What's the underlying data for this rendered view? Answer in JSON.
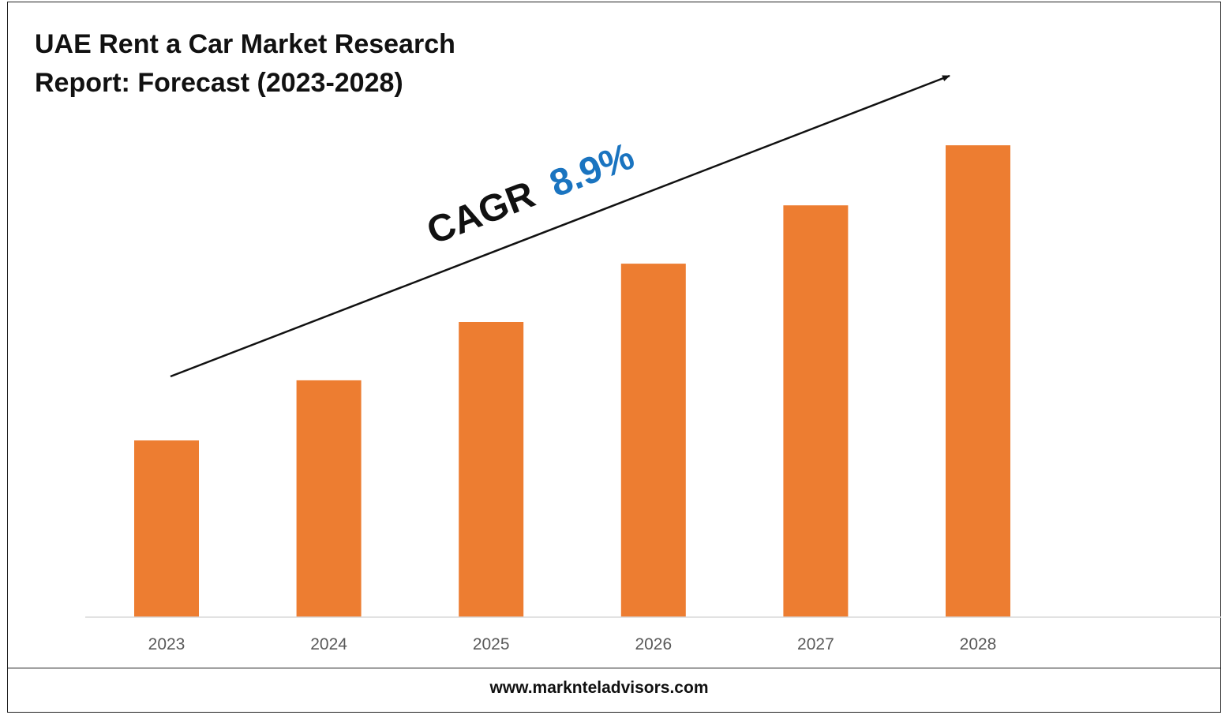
{
  "title": {
    "line1": "UAE Rent a Car Market Research",
    "line2": "Report: Forecast (2023-2028)"
  },
  "footer": {
    "url": "www.marknteladvisors.com"
  },
  "annotation": {
    "prefix": "CAGR",
    "value": "8.9%",
    "prefix_color": "#111111",
    "value_color": "#1a74c0"
  },
  "colors": {
    "bar": "#ed7d31",
    "baseline": "#d9d9d9",
    "tick_label": "#595959",
    "arrow": "#111111"
  },
  "chart_data": {
    "type": "bar",
    "categories": [
      "2023",
      "2024",
      "2025",
      "2026",
      "2027",
      "2028"
    ],
    "values": [
      1.0,
      1.34,
      1.67,
      2.0,
      2.33,
      2.67
    ],
    "title": "UAE Rent a Car Market Research Report: Forecast (2023-2028)",
    "xlabel": "",
    "ylabel": "",
    "ylim": [
      0,
      3.3
    ],
    "grid": false,
    "legend": "none",
    "trend_arrow": true
  }
}
